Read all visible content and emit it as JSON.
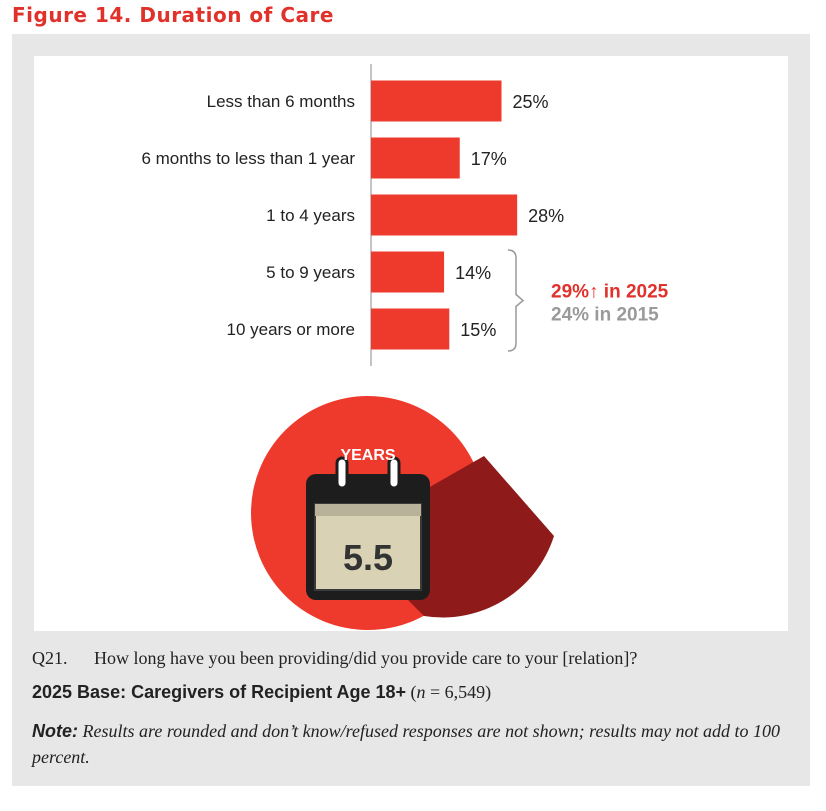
{
  "figure": {
    "title": "Figure 14. Duration of Care"
  },
  "chart_data": {
    "type": "bar",
    "orientation": "horizontal",
    "categories": [
      "Less than 6 months",
      "6 months to less than 1 year",
      "1 to 4 years",
      "5 to 9 years",
      "10 years or more"
    ],
    "values": [
      25,
      17,
      28,
      14,
      15
    ],
    "value_labels": [
      "25%",
      "17%",
      "28%",
      "14%",
      "15%"
    ],
    "bar_color": "#ee3a2d",
    "callout": {
      "line1": "29%↑ in 2025",
      "line2": "24% in 2015",
      "line1_color": "#e0322b",
      "line2_color": "#9a9a9a",
      "groups": [
        "5 to 9 years",
        "10 years or more"
      ]
    },
    "average_badge": {
      "label": "YEARS",
      "value": "5.5"
    }
  },
  "footer": {
    "question_number": "Q21.",
    "question_text": "How long have you been providing/did you provide care to your [relation]?",
    "base_bold": "2025 Base: Caregivers of Recipient Age 18+",
    "base_paren_open": "(",
    "base_n": "n",
    "base_rest": " = 6,549)",
    "note_label": "Note:",
    "note_text": " Results are rounded and don’t know/refused responses are not shown; results may not add to 100 percent."
  }
}
